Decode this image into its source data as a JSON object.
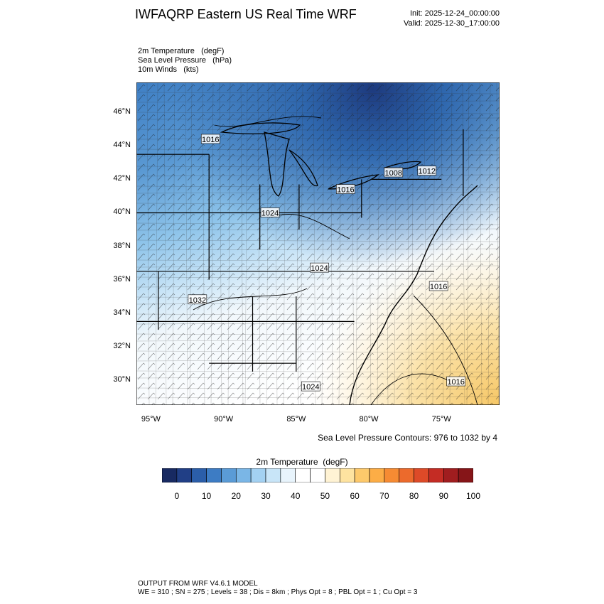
{
  "title": "IWFAQRP Eastern US Real Time WRF",
  "init": "Init: 2025-12-24_00:00:00",
  "valid": "Valid: 2025-12-30_17:00:00",
  "fields": [
    {
      "name": "2m Temperature",
      "unit": "(degF)"
    },
    {
      "name": "Sea Level Pressure",
      "unit": "(hPa)"
    },
    {
      "name": "10m Winds",
      "unit": "(kts)"
    }
  ],
  "map": {
    "lon_range": [
      -96,
      -71
    ],
    "lat_range": [
      28.5,
      47.8
    ],
    "lat_ticks": [
      "46°N",
      "44°N",
      "42°N",
      "40°N",
      "38°N",
      "36°N",
      "34°N",
      "32°N",
      "30°N"
    ],
    "lat_values": [
      46,
      44,
      42,
      40,
      38,
      36,
      34,
      32,
      30
    ],
    "lon_ticks": [
      "95°W",
      "90°W",
      "85°W",
      "80°W",
      "75°W"
    ],
    "lon_values": [
      -95,
      -90,
      -85,
      -80,
      -75
    ],
    "pressure_labels": [
      {
        "text": "1016",
        "lon": -90.9,
        "lat": 44.4
      },
      {
        "text": "1008",
        "lon": -78.3,
        "lat": 42.4
      },
      {
        "text": "1012",
        "lon": -76.0,
        "lat": 42.5
      },
      {
        "text": "1016",
        "lon": -81.6,
        "lat": 41.4
      },
      {
        "text": "1024",
        "lon": -86.8,
        "lat": 40.0
      },
      {
        "text": "1024",
        "lon": -83.4,
        "lat": 36.7
      },
      {
        "text": "1032",
        "lon": -91.8,
        "lat": 34.8
      },
      {
        "text": "1016",
        "lon": -75.2,
        "lat": 35.6
      },
      {
        "text": "1024",
        "lon": -84.0,
        "lat": 29.6
      },
      {
        "text": "1016",
        "lon": -74.0,
        "lat": 29.9
      }
    ]
  },
  "contour_note": "Sea Level Pressure Contours: 976 to 1032 by 4",
  "colorbar": {
    "title": "2m Temperature",
    "unit": "(degF)",
    "labels": [
      "0",
      "10",
      "20",
      "30",
      "40",
      "50",
      "60",
      "70",
      "80",
      "90",
      "100"
    ],
    "colors": [
      "#182a62",
      "#213f86",
      "#2b5ea9",
      "#3d7cc4",
      "#5a9bd6",
      "#7ab6e6",
      "#a3d1f2",
      "#c8e5f8",
      "#e8f4fc",
      "#ffffff",
      "#ffffff",
      "#fff3d4",
      "#fee3a0",
      "#fdc96b",
      "#fcad46",
      "#f68b33",
      "#ec6a2c",
      "#dd4a28",
      "#c42c24",
      "#a01d1f",
      "#861518"
    ]
  },
  "footer": {
    "line1": "OUTPUT FROM WRF V4.6.1 MODEL",
    "line2": "WE = 310 ; SN = 275 ; Levels = 38 ; Dis = 8km ; Phys Opt = 8 ; PBL Opt = 1 ; Cu Opt = 3"
  }
}
